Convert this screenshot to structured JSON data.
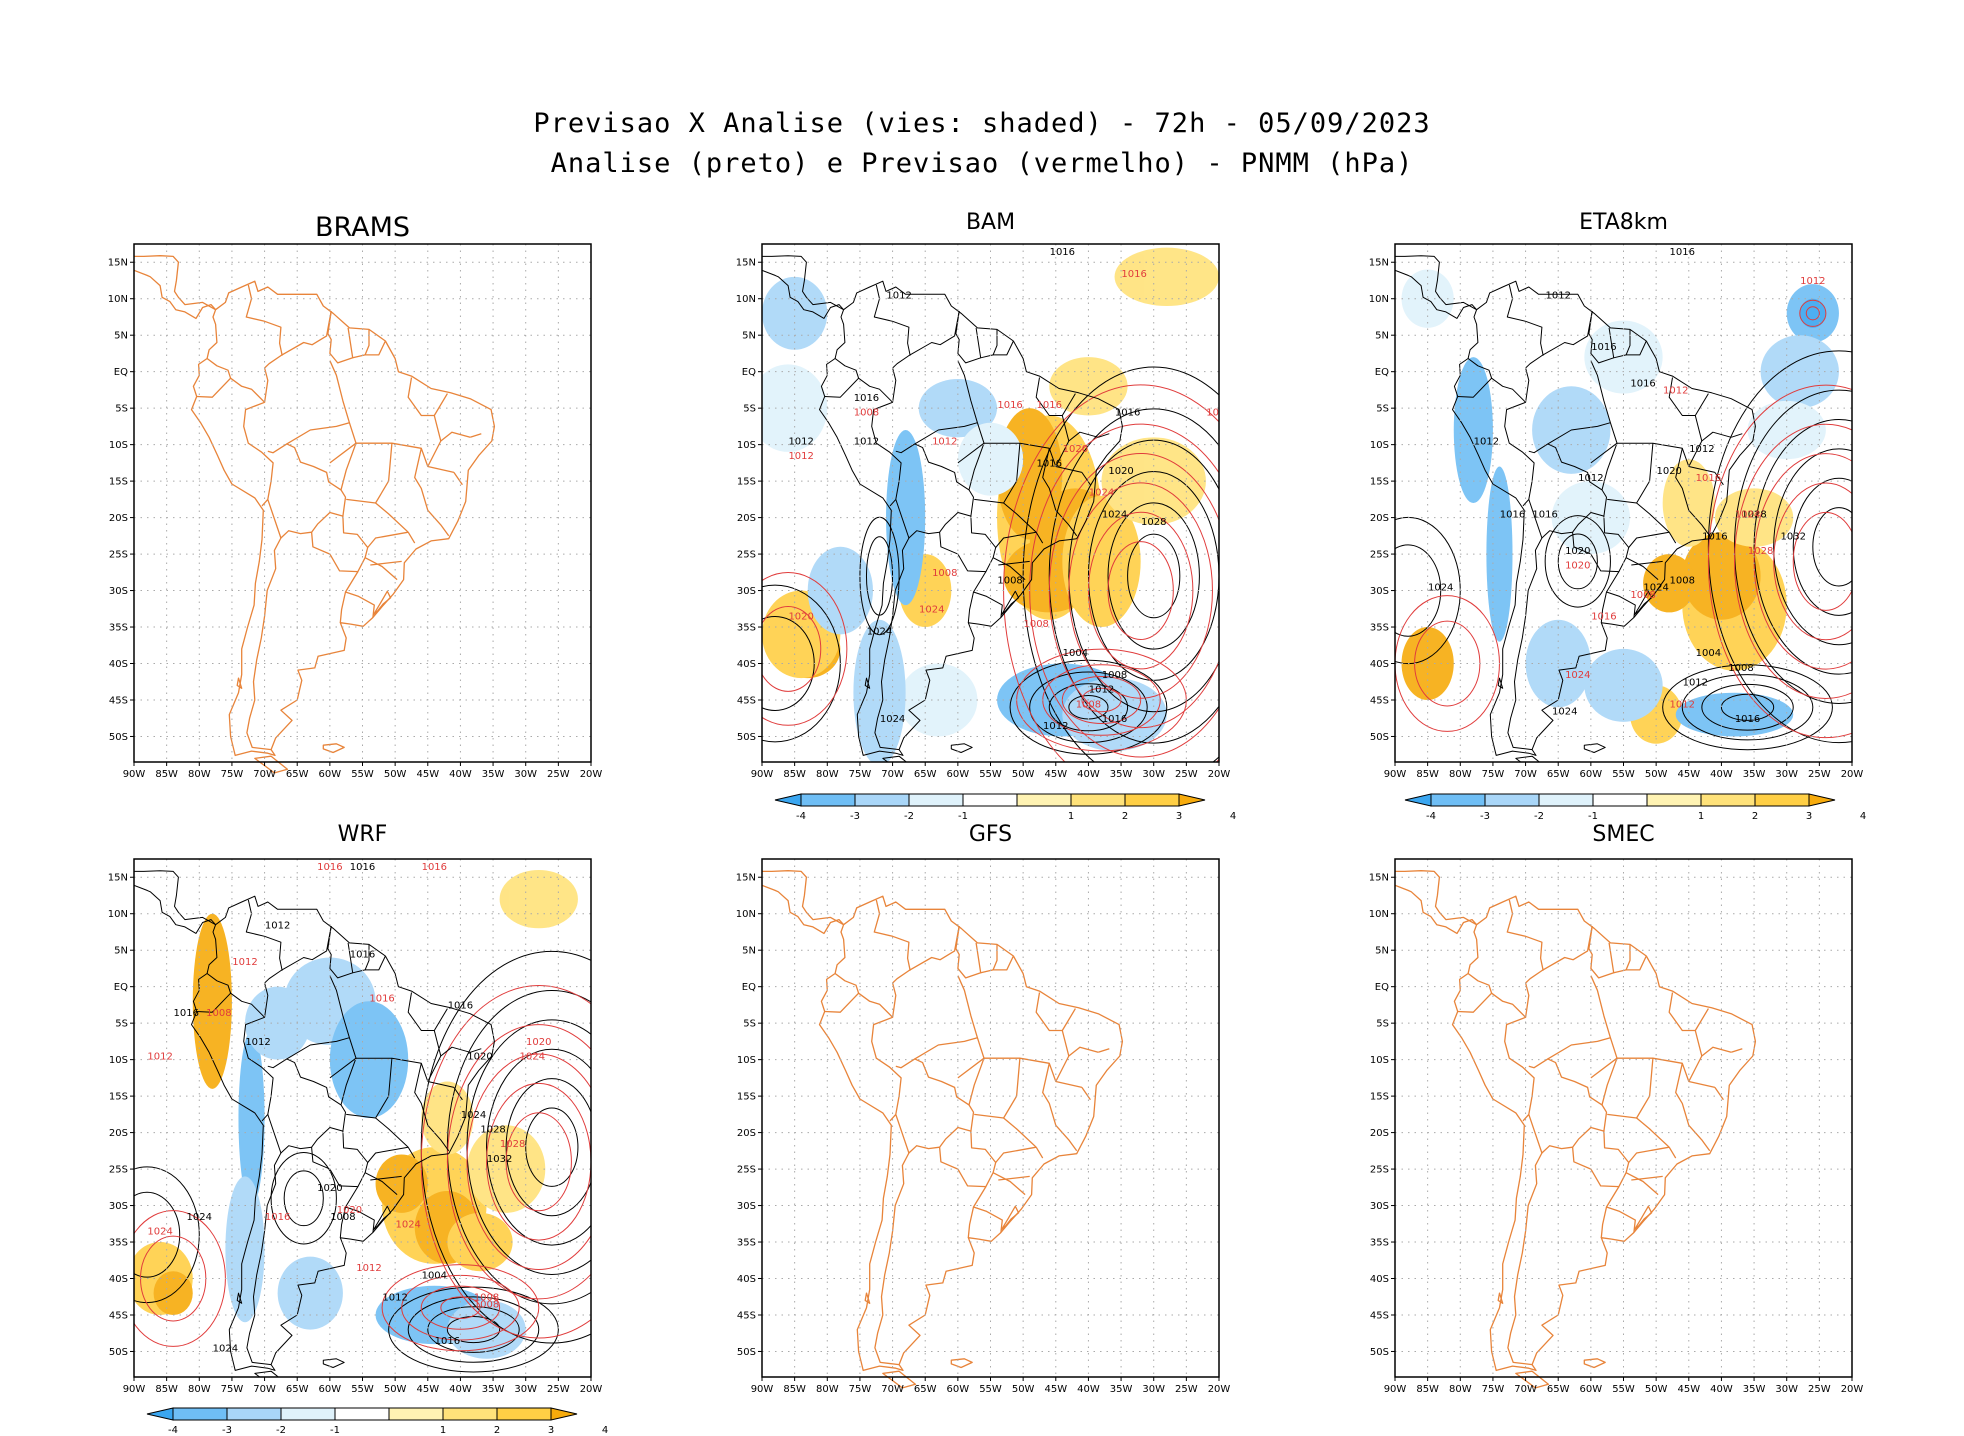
{
  "title": {
    "line1": "Previsao X Analise (vies: shaded) - 72h - 05/09/2023",
    "line2": "Analise (preto) e Previsao (vermelho) - PNMM (hPa)"
  },
  "axes": {
    "lat_labels": [
      "15N",
      "10N",
      "5N",
      "EQ",
      "5S",
      "10S",
      "15S",
      "20S",
      "25S",
      "30S",
      "35S",
      "40S",
      "45S",
      "50S"
    ],
    "lon_labels": [
      "90W",
      "85W",
      "80W",
      "75W",
      "70W",
      "65W",
      "60W",
      "55W",
      "50W",
      "45W",
      "40W",
      "35W",
      "30W",
      "25W",
      "20W"
    ]
  },
  "colorbar": {
    "labels": [
      "-4",
      "-3",
      "-2",
      "-1",
      "1",
      "2",
      "3",
      "4"
    ],
    "colors": [
      "#3aa6f0",
      "#6fbef5",
      "#a9d6f8",
      "#dff2fb",
      "#ffffff",
      "#fff3b3",
      "#ffe27a",
      "#ffcf45",
      "#f7ab0c"
    ]
  },
  "colors": {
    "coast": "#e8843a",
    "analysis": "#000000",
    "forecast": "#e03c3c",
    "grid": "#aaaaaa"
  },
  "panels": [
    {
      "name": "BRAMS",
      "has_data": false,
      "analysis_labels": [],
      "forecast_labels": []
    },
    {
      "name": "BAM",
      "has_data": true,
      "analysis_labels": [
        "1016",
        "1012",
        "1016",
        "1012",
        "1012",
        "1016",
        "1016",
        "1020",
        "1024",
        "1028",
        "1008",
        "1012",
        "1024",
        "1004",
        "1008",
        "1012",
        "1016",
        "1024"
      ],
      "forecast_labels": [
        "1016",
        "1012",
        "1008",
        "1012",
        "1016",
        "1016",
        "1020",
        "1024",
        "1020",
        "1008",
        "1008",
        "1008",
        "1024",
        "1020"
      ]
    },
    {
      "name": "ETA8km",
      "has_data": true,
      "analysis_labels": [
        "1016",
        "1012",
        "1016",
        "1012",
        "1012",
        "1016",
        "1012",
        "1016",
        "1016",
        "1020",
        "1020",
        "1024",
        "1028",
        "1032",
        "1024",
        "1016",
        "1008",
        "1004",
        "1008",
        "1012",
        "1016",
        "1024"
      ],
      "forecast_labels": [
        "1012",
        "1012",
        "1016",
        "1024",
        "1028",
        "1008",
        "1016",
        "1020",
        "1024",
        "1012"
      ]
    },
    {
      "name": "WRF",
      "has_data": true,
      "analysis_labels": [
        "1016",
        "1012",
        "1016",
        "1016",
        "1012",
        "1020",
        "1024",
        "1028",
        "1032",
        "1020",
        "1024",
        "1008",
        "1004",
        "1012",
        "1016",
        "1024",
        "1016"
      ],
      "forecast_labels": [
        "1016",
        "1016",
        "1012",
        "1012",
        "1008",
        "1016",
        "1020",
        "1024",
        "1028",
        "1024",
        "1020",
        "1012",
        "1008",
        "1008",
        "1024",
        "1016"
      ]
    },
    {
      "name": "GFS",
      "has_data": false,
      "analysis_labels": [],
      "forecast_labels": []
    },
    {
      "name": "SMEC",
      "has_data": false,
      "analysis_labels": [],
      "forecast_labels": []
    }
  ]
}
